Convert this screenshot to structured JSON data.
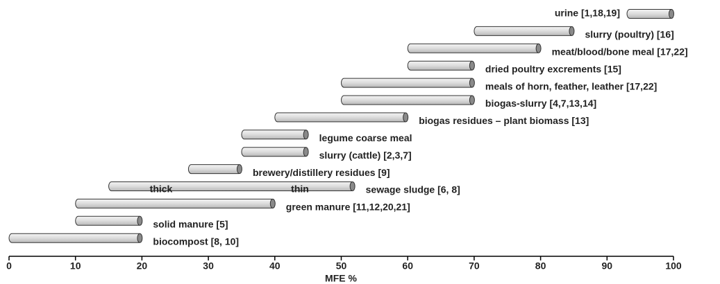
{
  "chart_data": {
    "type": "range-bar",
    "xlabel": "MFE %",
    "categories": [
      "urine [1,18,19]",
      "slurry (poultry) [16]",
      "meat/blood/bone meal [17,22]",
      "dried poultry excrements [15]",
      "meals of horn, feather, leather [17,22]",
      "biogas-slurry [4,7,13,14]",
      "biogas residues – plant biomass [13]",
      "legume coarse meal",
      "slurry (cattle) [2,3,7]",
      "brewery/distillery residues [9]",
      "sewage sludge [6, 8]",
      "green manure [11,12,20,21]",
      "solid  manure [5]",
      "biocompost [8, 10]"
    ],
    "low": [
      93,
      70,
      60,
      60,
      50,
      50,
      40,
      35,
      35,
      27,
      15,
      10,
      10,
      0
    ],
    "high": [
      100,
      85,
      80,
      70,
      70,
      70,
      60,
      45,
      45,
      35,
      52,
      40,
      20,
      20
    ],
    "color": "#dcdcdc",
    "annotations": [
      "thick",
      "thin"
    ],
    "xlim": [
      0,
      100
    ],
    "xticks": [
      0,
      10,
      20,
      30,
      40,
      50,
      60,
      70,
      80,
      90,
      100
    ]
  }
}
